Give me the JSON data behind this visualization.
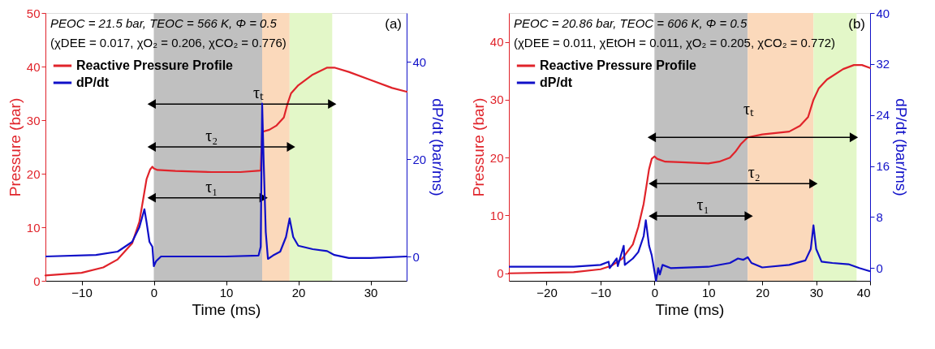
{
  "chart_data": [
    {
      "type": "line",
      "xlabel": "Time (ms)",
      "ylabel": "Pressure (bar)",
      "y2label": "dP/dt (bar/ms)",
      "xlim": [
        -15,
        35
      ],
      "xticks": [
        -10,
        0,
        10,
        20,
        30
      ],
      "ylim": [
        0,
        50
      ],
      "yticks": [
        0,
        10,
        20,
        30,
        40,
        50
      ],
      "y2lim": [
        -5,
        50
      ],
      "y2ticks": [
        0,
        20,
        40
      ],
      "grid": false,
      "legend": "top left",
      "bands": [
        {
          "axis": "x",
          "from": 0,
          "to": 15,
          "color": "#c0c0c0"
        },
        {
          "axis": "x",
          "from": 15,
          "to": 18.8,
          "color": "#fbd9bb"
        },
        {
          "axis": "x",
          "from": 18.8,
          "to": 24.7,
          "color": "#e3f7c8"
        }
      ],
      "series": [
        {
          "name": "Reactive Pressure Profile",
          "color": "#e0232a",
          "x": [
            -15,
            -10,
            -7,
            -5,
            -3,
            -2,
            -1.5,
            -1,
            -0.5,
            -0.2,
            0,
            0.5,
            3,
            8,
            12,
            14.8,
            15,
            16,
            17,
            18,
            18.5,
            19,
            20,
            22,
            24,
            25,
            27,
            30,
            33,
            35
          ],
          "values": [
            1.0,
            1.5,
            2.5,
            4,
            7,
            11,
            15,
            19,
            20.8,
            21.3,
            21,
            20.7,
            20.5,
            20.3,
            20.3,
            20.6,
            27.8,
            28.2,
            29,
            30.5,
            33,
            35,
            36.5,
            38.5,
            39.8,
            39.8,
            39,
            37.5,
            36,
            35.3
          ]
        },
        {
          "name": "dP/dt",
          "color": "#1010c8",
          "axis": "y2",
          "x": [
            -15,
            -8,
            -5,
            -3,
            -2,
            -1.3,
            -1,
            -0.6,
            -0.2,
            0,
            0.3,
            1,
            5,
            10,
            14.5,
            14.8,
            15,
            15.2,
            15.5,
            15.8,
            16.5,
            17.5,
            18.3,
            18.8,
            19.3,
            20,
            22,
            24,
            25,
            27,
            30,
            35
          ],
          "values": [
            0,
            0.3,
            1,
            3,
            6,
            9.7,
            7,
            3,
            2,
            -2,
            -1,
            0,
            0,
            0,
            0.2,
            2,
            31.4,
            20,
            5,
            -0.5,
            0.2,
            1,
            4,
            7.8,
            4,
            2.2,
            1.5,
            1.1,
            0.3,
            -0.3,
            -0.3,
            0
          ]
        },
        {
          "color": "#000000",
          "marker": "triangle",
          "x": [
            -0.3,
            24.7
          ],
          "values": [
            33,
            33
          ]
        },
        {
          "color": "#000000",
          "marker": "triangle",
          "x": [
            -0.3,
            19
          ],
          "values": [
            25,
            25
          ]
        },
        {
          "color": "#000000",
          "marker": "triangle",
          "x": [
            -0.3,
            15.2
          ],
          "values": [
            15.5,
            15.5
          ]
        }
      ],
      "annotations": [
        "PEOC = 21.5 bar, TEOC = 566 K, Φ = 0.5",
        "(χDEE = 0.017, χO₂ = 0.206, χCO₂ = 0.776)",
        "(a)",
        {
          "text": "τₜ",
          "x": 14.5,
          "y": 33
        },
        {
          "text": "τ₂",
          "x": 8,
          "y": 25
        },
        {
          "text": "τ₁",
          "x": 8,
          "y": 15.5
        }
      ]
    },
    {
      "type": "line",
      "xlabel": "Time (ms)",
      "ylabel": "Pressure (bar)",
      "y2label": "dP/dt (bar/ms)",
      "xlim": [
        -27,
        40
      ],
      "xticks": [
        -20,
        -10,
        0,
        10,
        20,
        30,
        40
      ],
      "ylim": [
        -1.3,
        45
      ],
      "yticks": [
        0,
        10,
        20,
        30,
        40
      ],
      "y2lim": [
        -2,
        40
      ],
      "y2ticks": [
        0,
        8,
        16,
        24,
        32,
        40
      ],
      "grid": false,
      "legend": "top left",
      "bands": [
        {
          "axis": "x",
          "from": 0,
          "to": 17.3,
          "color": "#c0c0c0"
        },
        {
          "axis": "x",
          "from": 17.3,
          "to": 29.5,
          "color": "#fbd9bb"
        },
        {
          "axis": "x",
          "from": 29.5,
          "to": 37.5,
          "color": "#e3f7c8"
        }
      ],
      "series": [
        {
          "name": "Reactive Pressure Profile",
          "color": "#e0232a",
          "x": [
            -27,
            -15,
            -10,
            -8,
            -6,
            -4,
            -3,
            -2,
            -1.5,
            -1,
            -0.5,
            0,
            0.5,
            2,
            5,
            10,
            12,
            14,
            15,
            16,
            17.3,
            20,
            25,
            27,
            28.5,
            29.5,
            30.5,
            32,
            35,
            37,
            38.5,
            40
          ],
          "values": [
            0,
            0.2,
            0.7,
            1.3,
            2.5,
            5,
            8,
            12,
            15,
            18,
            19.8,
            20.2,
            19.8,
            19.3,
            19.2,
            19,
            19.3,
            20,
            21,
            22.3,
            23.5,
            24,
            24.5,
            25.5,
            27,
            30,
            32,
            33.5,
            35.3,
            36,
            36,
            35.5
          ]
        },
        {
          "name": "dP/dt",
          "color": "#1010c8",
          "axis": "y2",
          "x": [
            -27,
            -15,
            -10,
            -8.5,
            -8.3,
            -7,
            -6.8,
            -5.7,
            -5.5,
            -4,
            -3,
            -2,
            -1.6,
            -1,
            -0.5,
            0,
            0.3,
            0.7,
            1,
            1.5,
            3,
            10,
            14,
            15.5,
            16.5,
            17.3,
            18,
            20,
            25,
            28,
            29,
            29.5,
            30,
            31,
            33,
            36,
            38,
            40
          ],
          "values": [
            0.2,
            0.2,
            0.5,
            1,
            0,
            1.5,
            0.3,
            3.5,
            0.5,
            1.5,
            2.5,
            5,
            7.5,
            3.5,
            2,
            -0.5,
            -2,
            0,
            -1,
            0.5,
            0,
            0.2,
            0.8,
            1.5,
            1.3,
            1.7,
            0.8,
            0.1,
            0.5,
            1.2,
            3,
            6.7,
            3,
            1,
            0.8,
            0.6,
            0,
            -0.5
          ]
        },
        {
          "color": "#000000",
          "marker": "triangle",
          "x": [
            -0.5,
            37
          ],
          "values": [
            23.5,
            23.5
          ]
        },
        {
          "color": "#000000",
          "marker": "triangle",
          "x": [
            -0.3,
            29.5
          ],
          "values": [
            15.5,
            15.5
          ]
        },
        {
          "color": "#000000",
          "marker": "triangle",
          "x": [
            -0.3,
            17.5
          ],
          "values": [
            9.9,
            9.9
          ]
        }
      ],
      "annotations": [
        "PEOC = 20.86 bar, TEOC = 606 K, Φ = 0.5",
        "(χDEE = 0.011, χEtOH = 0.011, χO₂ = 0.205, χCO₂ = 0.772)",
        "(b)",
        {
          "text": "τₜ",
          "x": 17.5,
          "y": 26.5
        },
        {
          "text": "τ₂",
          "x": 18.5,
          "y": 15.5
        },
        {
          "text": "τ₁",
          "x": 9,
          "y": 9.9
        }
      ]
    }
  ]
}
